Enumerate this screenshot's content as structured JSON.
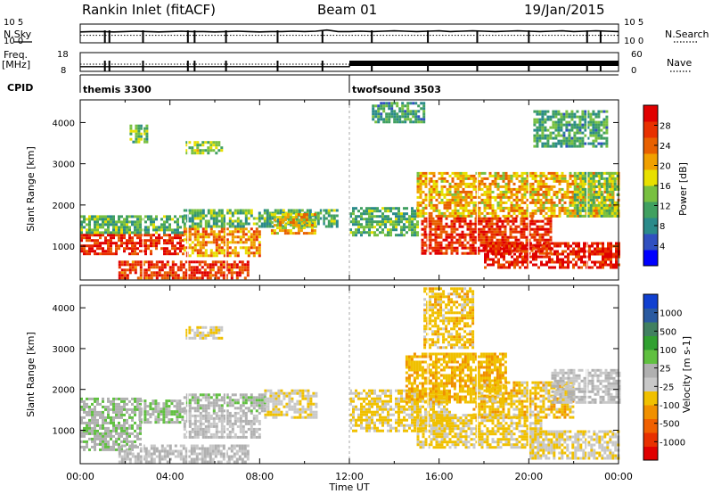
{
  "header": {
    "station": "Rankin Inlet (fitACF)",
    "beam": "Beam 01",
    "date": "19/Jan/2015"
  },
  "chart_data": [
    {
      "type": "line",
      "panel": "noise",
      "left_label": "N.Sky",
      "left_ticks": [
        "10^5",
        "10^0"
      ],
      "right_label": "N.Search",
      "right_ticks": [
        "10^5",
        "10^0"
      ],
      "series_style_note": "N.Sky solid, N.Search dotted",
      "x": [
        0,
        0.5,
        1,
        1.5,
        2,
        2.5,
        3,
        3.5,
        4,
        4.5,
        5,
        5.5,
        6,
        6.5,
        7,
        7.5,
        8,
        8.5,
        9,
        9.5,
        10,
        10.5,
        11,
        11.5,
        12,
        12.5,
        13,
        13.5,
        14,
        14.5,
        15,
        15.5,
        16,
        16.5,
        17,
        17.5,
        18,
        18.5,
        19,
        19.5,
        20,
        20.5,
        21,
        21.5,
        22,
        22.5,
        23,
        23.5,
        24
      ],
      "series": [
        {
          "values": [
            2.9,
            3.0,
            3.0,
            2.9,
            3.0,
            3.1,
            3.0,
            2.9,
            3.0,
            3.1,
            3.0,
            3.0,
            2.9,
            3.0,
            3.1,
            3.0,
            2.9,
            3.0,
            3.0,
            3.1,
            3.0,
            3.1,
            3.4,
            3.0,
            3.0,
            3.1,
            3.0,
            3.1,
            3.2,
            3.1,
            3.0,
            3.1,
            3.2,
            3.0,
            3.1,
            3.2,
            3.1,
            3.0,
            3.1,
            3.2,
            3.1,
            3.0,
            3.1,
            3.2,
            3.0,
            3.1,
            3.2,
            3.1,
            3.0
          ]
        },
        {
          "values": [
            2.0,
            2.0,
            2.0,
            2.0,
            2.0,
            2.0,
            2.0,
            2.0,
            2.0,
            2.0,
            2.0,
            2.0,
            2.0,
            2.0,
            2.0,
            2.0,
            2.0,
            2.0,
            2.0,
            2.0,
            2.0,
            2.0,
            2.0,
            2.0,
            2.0,
            2.0,
            2.0,
            2.0,
            2.0,
            2.0,
            2.0,
            2.0,
            2.0,
            2.0,
            2.0,
            2.0,
            2.0,
            2.0,
            2.0,
            2.0,
            2.0,
            2.0,
            2.0,
            2.0,
            2.0,
            2.0,
            2.0,
            2.0,
            2.0
          ]
        }
      ],
      "ylim": [
        0,
        5
      ]
    },
    {
      "type": "line",
      "panel": "frequency",
      "left_label": "Freq.",
      "left_unit": "[MHz]",
      "left_ticks": [
        18,
        8
      ],
      "right_label": "Nave",
      "right_ticks": [
        60,
        0
      ],
      "series_style_note": "Freq. solid, Nave dotted",
      "x": [
        0,
        1,
        2,
        3,
        4,
        5,
        6,
        7,
        8,
        9,
        10,
        11,
        12,
        12.01,
        13,
        14,
        15,
        16,
        17,
        18,
        19,
        20,
        21,
        22,
        23,
        24
      ],
      "series": [
        {
          "values": [
            10.5,
            10.5,
            10.5,
            10.5,
            10.5,
            10.5,
            10.5,
            10.5,
            10.5,
            10.5,
            10.5,
            10.5,
            10.5,
            11.5,
            11.5,
            11.5,
            11.5,
            11.5,
            11.5,
            11.5,
            11.5,
            11.5,
            11.5,
            11.5,
            11.5,
            11.5
          ]
        },
        {
          "values": [
            23,
            23,
            23,
            23,
            23,
            23,
            23,
            23,
            23,
            23,
            23,
            23,
            23,
            23,
            23,
            23,
            23,
            23,
            23,
            23,
            23,
            23,
            23,
            23,
            23,
            23
          ]
        }
      ],
      "ylim": [
        8,
        18
      ]
    },
    {
      "type": "table",
      "panel": "cpid",
      "label": "CPID",
      "segments": [
        {
          "name": "themis 3300",
          "start": 0,
          "end": 12
        },
        {
          "name": "twofsound 3503",
          "start": 12,
          "end": 24
        }
      ]
    },
    {
      "type": "heatmap",
      "panel": "power",
      "ylabel": "Slant Range [km]",
      "yticks": [
        1000,
        2000,
        3000,
        4000
      ],
      "ylim": [
        180,
        4550
      ],
      "xlim": [
        0,
        24
      ],
      "colorbar": {
        "label": "Power [dB]",
        "ticks": [
          "4",
          "8",
          "12",
          "16",
          "20",
          "24",
          "28"
        ],
        "range": [
          0,
          32
        ]
      },
      "echo_regions": [
        {
          "t0": 0.0,
          "t1": 4.6,
          "r0": 800,
          "r1": 1300,
          "value": 28
        },
        {
          "t0": 0.0,
          "t1": 4.6,
          "r0": 1300,
          "r1": 1750,
          "value": 12
        },
        {
          "t0": 1.7,
          "t1": 7.5,
          "r0": 200,
          "r1": 650,
          "value": 27
        },
        {
          "t0": 4.6,
          "t1": 8.0,
          "r0": 800,
          "r1": 1450,
          "value": 22
        },
        {
          "t0": 4.6,
          "t1": 11.5,
          "r0": 1450,
          "r1": 1900,
          "value": 12
        },
        {
          "t0": 2.2,
          "t1": 3.0,
          "r0": 3500,
          "r1": 3950,
          "value": 13
        },
        {
          "t0": 4.7,
          "t1": 6.3,
          "r0": 3250,
          "r1": 3550,
          "value": 15
        },
        {
          "t0": 8.5,
          "t1": 10.5,
          "r0": 1300,
          "r1": 1800,
          "value": 20
        },
        {
          "t0": 12.0,
          "t1": 15.0,
          "r0": 1250,
          "r1": 1950,
          "value": 12
        },
        {
          "t0": 13.0,
          "t1": 15.3,
          "r0": 4000,
          "r1": 4500,
          "value": 10
        },
        {
          "t0": 15.0,
          "t1": 24.0,
          "r0": 1700,
          "r1": 2800,
          "value": 20
        },
        {
          "t0": 15.2,
          "t1": 21.0,
          "r0": 800,
          "r1": 1700,
          "value": 28
        },
        {
          "t0": 18.0,
          "t1": 24.0,
          "r0": 500,
          "r1": 1100,
          "value": 29
        },
        {
          "t0": 22.0,
          "t1": 24.0,
          "r0": 1700,
          "r1": 2800,
          "value": 14
        },
        {
          "t0": 20.2,
          "t1": 23.5,
          "r0": 3400,
          "r1": 4300,
          "value": 11
        }
      ]
    },
    {
      "type": "heatmap",
      "panel": "velocity",
      "ylabel": "Slant Range [km]",
      "yticks": [
        1000,
        2000,
        3000,
        4000
      ],
      "ylim": [
        180,
        4550
      ],
      "xlim": [
        0,
        24
      ],
      "xlabel": "Time UT",
      "xticks": [
        "00:00",
        "04:00",
        "08:00",
        "12:00",
        "16:00",
        "20:00",
        "00:00"
      ],
      "colorbar": {
        "label": "Velocity [m s-1]",
        "ticks": [
          "1000",
          "500",
          "100",
          "25",
          "-25",
          "-100",
          "-500",
          "-1000"
        ],
        "range": [
          -1200,
          1200
        ]
      },
      "echo_regions": [
        {
          "t0": 0.0,
          "t1": 2.7,
          "r0": 500,
          "r1": 1800,
          "value": 150
        },
        {
          "t0": 2.6,
          "t1": 4.6,
          "r0": 1200,
          "r1": 1750,
          "value": 130
        },
        {
          "t0": 1.7,
          "t1": 7.5,
          "r0": 200,
          "r1": 650,
          "value": 20
        },
        {
          "t0": 4.6,
          "t1": 8.0,
          "r0": 800,
          "r1": 1450,
          "value": 0
        },
        {
          "t0": 4.6,
          "t1": 8.2,
          "r0": 1450,
          "r1": 1900,
          "value": 120
        },
        {
          "t0": 8.2,
          "t1": 10.5,
          "r0": 1300,
          "r1": 2000,
          "value": -150
        },
        {
          "t0": 4.7,
          "t1": 6.3,
          "r0": 3250,
          "r1": 3550,
          "value": -150
        },
        {
          "t0": 12.0,
          "t1": 16.5,
          "r0": 1000,
          "r1": 2000,
          "value": -250
        },
        {
          "t0": 14.5,
          "t1": 19.0,
          "r0": 1700,
          "r1": 2900,
          "value": -350
        },
        {
          "t0": 15.0,
          "t1": 20.5,
          "r0": 600,
          "r1": 1400,
          "value": -250
        },
        {
          "t0": 17.5,
          "t1": 22.0,
          "r0": 1300,
          "r1": 2200,
          "value": -300
        },
        {
          "t0": 21.0,
          "t1": 24.0,
          "r0": 1700,
          "r1": 2500,
          "value": 0
        },
        {
          "t0": 20.0,
          "t1": 24.0,
          "r0": 300,
          "r1": 1000,
          "value": -150
        },
        {
          "t0": 15.3,
          "t1": 17.5,
          "r0": 3000,
          "r1": 4500,
          "value": -300
        }
      ]
    }
  ]
}
